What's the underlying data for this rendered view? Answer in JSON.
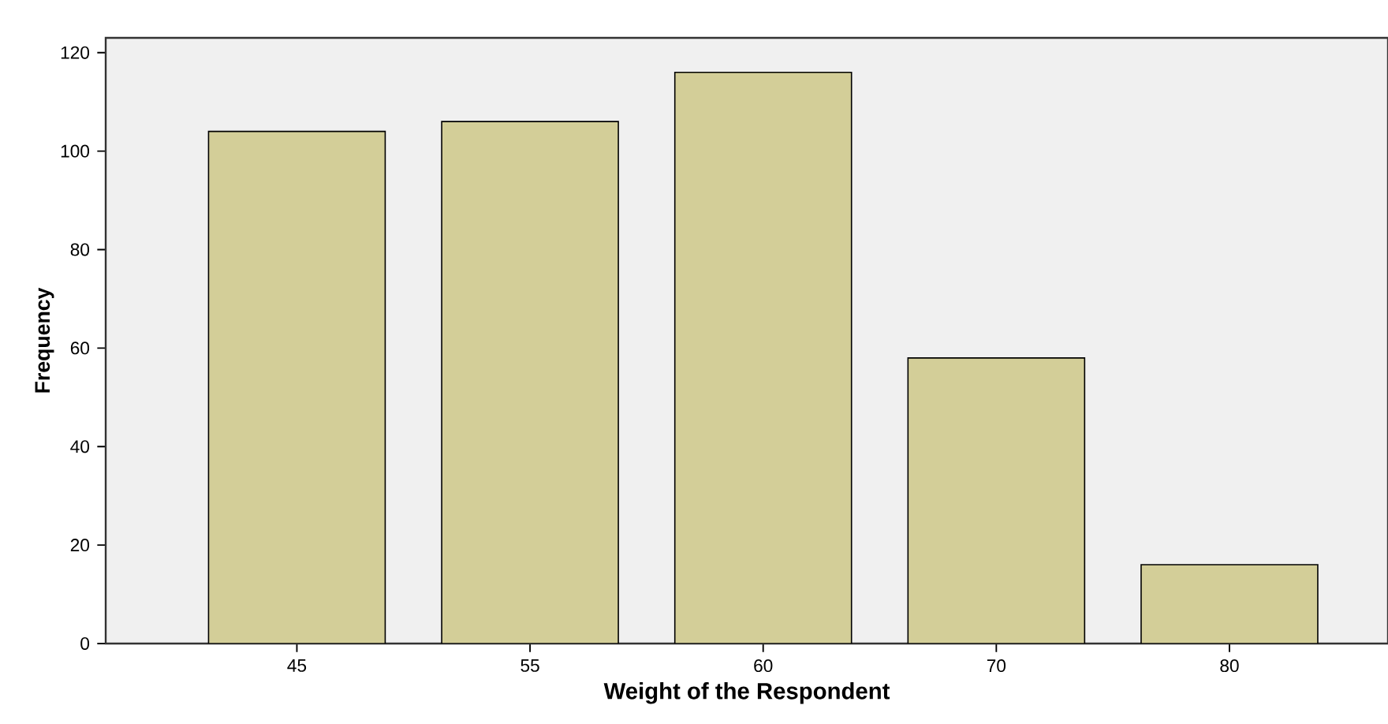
{
  "chart_data": {
    "type": "bar",
    "xlabel": "Weight  of the Respondent",
    "ylabel": "Frequency",
    "categories": [
      "45",
      "55",
      "60",
      "70",
      "80"
    ],
    "values": [
      104,
      106,
      116,
      58,
      16
    ],
    "color": "#d3ce98",
    "ylim": [
      0,
      123
    ],
    "yticks": [
      0,
      20,
      40,
      60,
      80,
      100,
      120
    ],
    "grid": false
  }
}
